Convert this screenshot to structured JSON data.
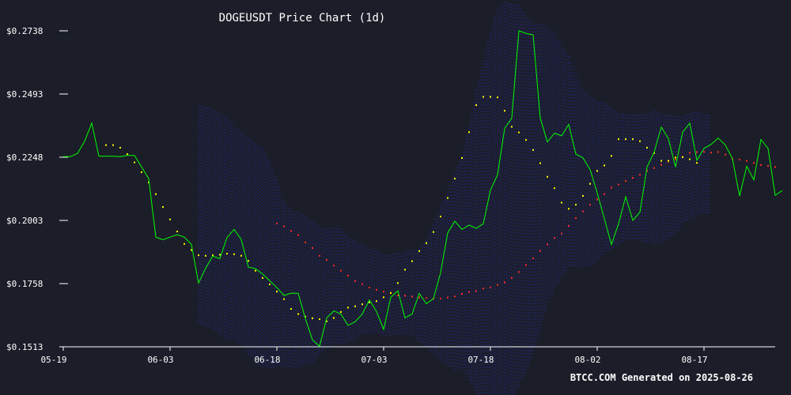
{
  "chart_data": {
    "type": "line",
    "title": "DOGEUSDT Price Chart (1d)",
    "footer": "BTCC.COM Generated on 2025-08-26",
    "xlabel": "",
    "ylabel": "",
    "ylim": [
      0.1513,
      0.2738
    ],
    "y_ticks": [
      "$0.2738",
      "$0.2493",
      "$0.2248",
      "$0.2003",
      "$0.1758",
      "$0.1513"
    ],
    "y_tick_values": [
      0.2738,
      0.2493,
      0.2248,
      0.2003,
      0.1758,
      0.1513
    ],
    "x_ticks": [
      "05-19",
      "06-03",
      "06-18",
      "07-03",
      "07-18",
      "08-02",
      "08-17"
    ],
    "x_tick_day_index": [
      0,
      15,
      30,
      45,
      60,
      75,
      90
    ],
    "x_start_date": "2025-05-19",
    "colors": {
      "background": "#1b1e28",
      "price": "#00ff00",
      "ma_short": "#ffff00",
      "ma_long": "#ff2a2a",
      "bollinger": "#2a2aa0",
      "axis": "#ffffff"
    },
    "series": [
      {
        "name": "price",
        "style": "line",
        "start_index": 0,
        "values": [
          0.225,
          0.225,
          0.2263,
          0.231,
          0.238,
          0.2252,
          0.2252,
          0.2252,
          0.225,
          0.2255,
          0.2255,
          0.221,
          0.2165,
          0.1938,
          0.1928,
          0.1938,
          0.1948,
          0.1938,
          0.191,
          0.176,
          0.1818,
          0.1865,
          0.1855,
          0.1937,
          0.1968,
          0.1929,
          0.1822,
          0.1816,
          0.1795,
          0.1769,
          0.1742,
          0.1712,
          0.1721,
          0.172,
          0.1623,
          0.154,
          0.1515,
          0.1625,
          0.1652,
          0.164,
          0.1596,
          0.161,
          0.164,
          0.1695,
          0.165,
          0.158,
          0.1705,
          0.173,
          0.1625,
          0.164,
          0.172,
          0.168,
          0.17,
          0.18,
          0.1955,
          0.2,
          0.1968,
          0.1985,
          0.1972,
          0.199,
          0.212,
          0.218,
          0.236,
          0.24,
          0.2738,
          0.2728,
          0.2722,
          0.2399,
          0.2307,
          0.2341,
          0.2331,
          0.2375,
          0.226,
          0.2246,
          0.22,
          0.211,
          0.201,
          0.191,
          0.199,
          0.2095,
          0.2003,
          0.2035,
          0.221,
          0.2268,
          0.2365,
          0.232,
          0.221,
          0.2345,
          0.238,
          0.2236,
          0.2282,
          0.2298,
          0.2322,
          0.2295,
          0.2242,
          0.2098,
          0.2213,
          0.216,
          0.2317,
          0.2282,
          0.21,
          0.2119
        ]
      },
      {
        "name": "ma_short",
        "style": "dots",
        "start_index": 6,
        "values": [
          0.2295,
          0.2295,
          0.2285,
          0.226,
          0.2228,
          0.219,
          0.215,
          0.2105,
          0.2055,
          0.2007,
          0.196,
          0.1912,
          0.1888,
          0.1868,
          0.1866,
          0.1868,
          0.187,
          0.1874,
          0.1872,
          0.1866,
          0.1846,
          0.1808,
          0.178,
          0.1755,
          0.1727,
          0.1698,
          0.166,
          0.164,
          0.163,
          0.1624,
          0.162,
          0.1612,
          0.1625,
          0.1648,
          0.1665,
          0.167,
          0.1678,
          0.1685,
          0.169,
          0.1705,
          0.1722,
          0.176,
          0.1812,
          0.1845,
          0.1884,
          0.1915,
          0.1958,
          0.2018,
          0.209,
          0.2165,
          0.2245,
          0.2345,
          0.245,
          0.2482,
          0.2482,
          0.248,
          0.2428,
          0.2366,
          0.2344,
          0.2315,
          0.2276,
          0.2225,
          0.2172,
          0.2128,
          0.2072,
          0.2048,
          0.2064,
          0.2098,
          0.2145,
          0.2195,
          0.2216,
          0.2253,
          0.2318,
          0.2318,
          0.2318,
          0.231,
          0.2285,
          0.2264,
          0.2234,
          0.2234,
          0.2247,
          0.2248,
          0.224,
          0.2226
        ]
      },
      {
        "name": "ma_long",
        "style": "dots",
        "start_index": 30,
        "values": [
          0.1991,
          0.198,
          0.1962,
          0.1946,
          0.1918,
          0.1896,
          0.1866,
          0.185,
          0.1828,
          0.1808,
          0.1789,
          0.1768,
          0.1756,
          0.1743,
          0.1734,
          0.1727,
          0.172,
          0.1712,
          0.1711,
          0.1708,
          0.1704,
          0.1702,
          0.17,
          0.17,
          0.1704,
          0.1708,
          0.1718,
          0.1725,
          0.1729,
          0.1739,
          0.1743,
          0.1753,
          0.1763,
          0.178,
          0.1803,
          0.183,
          0.1856,
          0.1885,
          0.191,
          0.1935,
          0.1952,
          0.1982,
          0.2012,
          0.2038,
          0.2064,
          0.2084,
          0.2105,
          0.213,
          0.2142,
          0.2156,
          0.2168,
          0.218,
          0.2195,
          0.2206,
          0.2219,
          0.2231,
          0.224,
          0.225,
          0.2265,
          0.2268,
          0.2269,
          0.2266,
          0.2268,
          0.2258,
          0.2242,
          0.2239,
          0.2234,
          0.2226,
          0.2218,
          0.2214,
          0.221
        ]
      },
      {
        "name": "bollinger",
        "style": "band",
        "start_index": 19,
        "upper": [
          0.2451,
          0.2444,
          0.2432,
          0.2418,
          0.2403,
          0.2364,
          0.2347,
          0.2322,
          0.2299,
          0.2282,
          0.2232,
          0.2163,
          0.2078,
          0.2042,
          0.2034,
          0.202,
          0.2002,
          0.1977,
          0.197,
          0.1975,
          0.1972,
          0.194,
          0.1924,
          0.1908,
          0.1893,
          0.1884,
          0.1866,
          0.187,
          0.1877,
          0.188,
          0.1888,
          0.1892,
          0.1926,
          0.1989,
          0.2057,
          0.2117,
          0.2189,
          0.2256,
          0.237,
          0.251,
          0.2625,
          0.2735,
          0.2822,
          0.285,
          0.2842,
          0.2838,
          0.28,
          0.2761,
          0.2765,
          0.2755,
          0.273,
          0.2683,
          0.264,
          0.2567,
          0.2513,
          0.2485,
          0.2463,
          0.2461,
          0.2436,
          0.2417,
          0.2415,
          0.2413,
          0.2415,
          0.2416,
          0.2429,
          0.2415,
          0.2411,
          0.2408,
          0.2404,
          0.2417,
          0.2425,
          0.2414,
          0.2414
        ],
        "lower": [
          0.1601,
          0.159,
          0.1577,
          0.1557,
          0.154,
          0.154,
          0.1521,
          0.1478,
          0.145,
          0.1433,
          0.143,
          0.1436,
          0.1436,
          0.1433,
          0.1432,
          0.1441,
          0.1447,
          0.1485,
          0.1502,
          0.1521,
          0.1519,
          0.1531,
          0.1542,
          0.1561,
          0.1561,
          0.1566,
          0.1557,
          0.1557,
          0.1557,
          0.156,
          0.1555,
          0.1528,
          0.151,
          0.1481,
          0.1455,
          0.1441,
          0.1424,
          0.1423,
          0.1386,
          0.1329,
          0.1277,
          0.1272,
          0.1273,
          0.1293,
          0.1314,
          0.1362,
          0.1415,
          0.1484,
          0.1572,
          0.1679,
          0.1734,
          0.1779,
          0.182,
          0.1822,
          0.1824,
          0.1828,
          0.1842,
          0.1874,
          0.189,
          0.1907,
          0.1925,
          0.1925,
          0.1923,
          0.1919,
          0.1909,
          0.1915,
          0.193,
          0.1948,
          0.1989,
          0.2006,
          0.202,
          0.203,
          0.203
        ]
      }
    ]
  }
}
